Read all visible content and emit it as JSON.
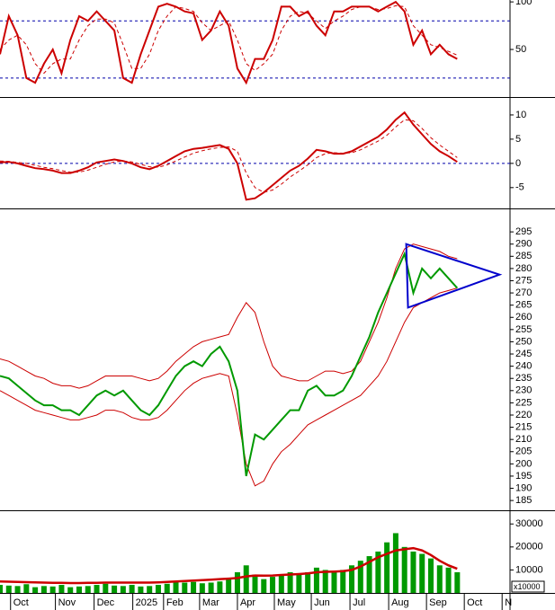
{
  "chart_data": [
    {
      "type": "line",
      "xlim": [
        0,
        58
      ],
      "ylim": [
        0,
        102
      ],
      "yticks": [
        50,
        100
      ],
      "levels": [
        20,
        80
      ],
      "x": [
        0,
        1,
        2,
        3,
        4,
        5,
        6,
        7,
        8,
        9,
        10,
        11,
        12,
        13,
        14,
        15,
        16,
        17,
        18,
        19,
        20,
        21,
        22,
        23,
        24,
        25,
        26,
        27,
        28,
        29,
        30,
        31,
        32,
        33,
        34,
        35,
        36,
        37,
        38,
        39,
        40,
        41,
        42,
        43,
        44,
        45,
        46,
        47,
        48,
        49,
        50,
        51,
        52
      ],
      "series": [
        {
          "color": "#cc0000",
          "style": "line",
          "values": [
            45,
            85,
            65,
            20,
            15,
            35,
            50,
            25,
            60,
            85,
            80,
            90,
            80,
            70,
            20,
            15,
            45,
            70,
            95,
            98,
            95,
            90,
            88,
            60,
            70,
            90,
            75,
            30,
            15,
            40,
            40,
            60,
            95,
            95,
            85,
            90,
            75,
            65,
            90,
            90,
            95,
            95,
            95,
            90,
            95,
            100,
            90,
            55,
            70,
            45,
            55,
            45,
            40
          ]
        },
        {
          "color": "#cc0000",
          "style": "dashed",
          "values": [
            50,
            60,
            65,
            55,
            35,
            25,
            35,
            40,
            40,
            60,
            75,
            82,
            82,
            78,
            55,
            30,
            30,
            45,
            70,
            85,
            95,
            93,
            90,
            78,
            70,
            75,
            80,
            60,
            35,
            28,
            35,
            45,
            70,
            85,
            90,
            88,
            80,
            72,
            80,
            85,
            92,
            95,
            95,
            92,
            93,
            96,
            95,
            75,
            65,
            55,
            52,
            48,
            44
          ]
        }
      ]
    },
    {
      "type": "line",
      "xlim": [
        0,
        58
      ],
      "ylim": [
        -9.3,
        12.4
      ],
      "yticks": [
        -5,
        0,
        5,
        10
      ],
      "levels": [
        0
      ],
      "x": [
        0,
        1,
        2,
        3,
        4,
        5,
        6,
        7,
        8,
        9,
        10,
        11,
        12,
        13,
        14,
        15,
        16,
        17,
        18,
        19,
        20,
        21,
        22,
        23,
        24,
        25,
        26,
        27,
        28,
        29,
        30,
        31,
        32,
        33,
        34,
        35,
        36,
        37,
        38,
        39,
        40,
        41,
        42,
        43,
        44,
        45,
        46,
        47,
        48,
        49,
        50,
        51,
        52
      ],
      "series": [
        {
          "color": "#cc0000",
          "style": "line",
          "values": [
            0.2,
            0.3,
            0,
            -0.5,
            -1,
            -1.2,
            -1.5,
            -2,
            -2,
            -1.5,
            -0.8,
            0.2,
            0.5,
            0.8,
            0.5,
            0,
            -0.8,
            -1.2,
            -0.5,
            0.5,
            1.5,
            2.5,
            3,
            3.2,
            3.5,
            3.8,
            3,
            0,
            -7.5,
            -7.2,
            -6,
            -4.5,
            -3,
            -1.5,
            -0.5,
            1,
            2.8,
            2.5,
            2,
            2,
            2.5,
            3.5,
            4.5,
            5.5,
            7,
            9,
            10.5,
            8,
            6,
            4,
            2.5,
            1.5,
            0.3
          ]
        },
        {
          "color": "#cc0000",
          "style": "dashed",
          "values": [
            0.5,
            0.4,
            0.2,
            0,
            -0.4,
            -0.8,
            -1.1,
            -1.5,
            -1.8,
            -1.8,
            -1.4,
            -0.8,
            -0.2,
            0.3,
            0.5,
            0.3,
            -0.2,
            -0.7,
            -0.8,
            -0.3,
            0.5,
            1.3,
            2.1,
            2.6,
            3,
            3.3,
            3.4,
            2.5,
            -2,
            -5,
            -6,
            -5.5,
            -4.3,
            -2.8,
            -1.6,
            -0.3,
            1.2,
            2,
            2.2,
            2.1,
            2.2,
            2.8,
            3.7,
            4.6,
            5.8,
            7.5,
            9,
            8.8,
            7.2,
            5.3,
            3.8,
            2.5,
            1.2
          ]
        }
      ]
    },
    {
      "type": "line",
      "xlim": [
        0,
        58
      ],
      "ylim": [
        181,
        302.4
      ],
      "yticks": [
        185,
        190,
        195,
        200,
        205,
        210,
        215,
        220,
        225,
        230,
        235,
        240,
        245,
        250,
        255,
        260,
        265,
        270,
        275,
        280,
        285,
        290,
        295
      ],
      "x": [
        0,
        1,
        2,
        3,
        4,
        5,
        6,
        7,
        8,
        9,
        10,
        11,
        12,
        13,
        14,
        15,
        16,
        17,
        18,
        19,
        20,
        21,
        22,
        23,
        24,
        25,
        26,
        27,
        28,
        29,
        30,
        31,
        32,
        33,
        34,
        35,
        36,
        37,
        38,
        39,
        40,
        41,
        42,
        43,
        44,
        45,
        46,
        47,
        48,
        49,
        50,
        51,
        52
      ],
      "series": [
        {
          "color": "#cc0000",
          "style": "thin",
          "values": [
            243,
            242,
            240,
            238,
            236,
            235,
            233,
            232,
            232,
            231,
            232,
            234,
            236,
            236,
            236,
            236,
            235,
            234,
            235,
            238,
            242,
            245,
            248,
            250,
            251,
            252,
            253,
            260,
            266,
            262,
            250,
            240,
            236,
            235,
            234,
            234,
            236,
            238,
            238,
            237,
            238,
            242,
            250,
            258,
            268,
            280,
            288,
            290,
            289,
            288,
            287,
            285,
            284
          ]
        },
        {
          "color": "#cc0000",
          "style": "thin",
          "values": [
            230,
            228,
            226,
            224,
            222,
            221,
            220,
            219,
            218,
            218,
            219,
            220,
            222,
            222,
            221,
            219,
            218,
            218,
            219,
            222,
            226,
            230,
            233,
            235,
            236,
            237,
            236,
            220,
            200,
            191,
            193,
            200,
            205,
            208,
            212,
            216,
            218,
            220,
            222,
            224,
            226,
            228,
            232,
            236,
            242,
            250,
            258,
            264,
            266,
            268,
            270,
            271,
            272
          ]
        },
        {
          "color": "#009900",
          "style": "line",
          "values": [
            236,
            235,
            232,
            229,
            226,
            224,
            224,
            222,
            222,
            220,
            224,
            228,
            230,
            228,
            230,
            226,
            222,
            220,
            224,
            230,
            236,
            240,
            242,
            240,
            245,
            248,
            242,
            230,
            195,
            212,
            210,
            214,
            218,
            222,
            222,
            230,
            232,
            228,
            228,
            230,
            236,
            244,
            252,
            262,
            270,
            278,
            286,
            270,
            280,
            276,
            280,
            276,
            272
          ]
        }
      ],
      "shape": {
        "color": "#0000cc",
        "x": [
          46.2,
          56.8,
          46.4
        ],
        "y": [
          290,
          277.5,
          264
        ]
      }
    },
    {
      "type": "bar",
      "xlim": [
        0,
        58
      ],
      "ylim": [
        0,
        34000
      ],
      "yticks": [
        10000,
        20000,
        30000
      ],
      "unit_label": "x10000",
      "x": [
        0,
        1,
        2,
        3,
        4,
        5,
        6,
        7,
        8,
        9,
        10,
        11,
        12,
        13,
        14,
        15,
        16,
        17,
        18,
        19,
        20,
        21,
        22,
        23,
        24,
        25,
        26,
        27,
        28,
        29,
        30,
        31,
        32,
        33,
        34,
        35,
        36,
        37,
        38,
        39,
        40,
        41,
        42,
        43,
        44,
        45,
        46,
        47,
        48,
        49,
        50,
        51,
        52
      ],
      "series": [
        {
          "color": "#009900",
          "style": "bar",
          "values": [
            3500,
            3200,
            3000,
            3800,
            2500,
            3000,
            2800,
            3500,
            2500,
            2800,
            3000,
            3500,
            4000,
            3200,
            3000,
            3500,
            2800,
            3000,
            3500,
            4000,
            5000,
            4500,
            4800,
            4200,
            4500,
            5000,
            6000,
            9000,
            12000,
            8000,
            6000,
            7000,
            8000,
            9000,
            8000,
            9000,
            11000,
            10000,
            9000,
            10000,
            12000,
            14000,
            16000,
            18000,
            22000,
            26000,
            20000,
            18000,
            17000,
            15000,
            12000,
            11000,
            9000
          ]
        },
        {
          "color": "#cc0000",
          "style": "thick",
          "values": [
            5000,
            4900,
            4800,
            4700,
            4600,
            4500,
            4400,
            4400,
            4300,
            4300,
            4400,
            4400,
            4500,
            4500,
            4500,
            4500,
            4500,
            4500,
            4600,
            4800,
            5000,
            5200,
            5400,
            5600,
            5800,
            6000,
            6200,
            6500,
            7200,
            7600,
            7500,
            7600,
            7800,
            8000,
            8200,
            8500,
            9000,
            9200,
            9300,
            9500,
            10000,
            11500,
            13500,
            15500,
            17000,
            18500,
            19000,
            19500,
            18500,
            16500,
            14000,
            12000,
            10500
          ]
        }
      ],
      "xticks": [
        {
          "value": 1.2,
          "label": "Oct"
        },
        {
          "value": 6.3,
          "label": "Nov"
        },
        {
          "value": 10.7,
          "label": "Dec"
        },
        {
          "value": 15.1,
          "label": "2025"
        },
        {
          "value": 18.6,
          "label": "Feb"
        },
        {
          "value": 22.7,
          "label": "Mar"
        },
        {
          "value": 27,
          "label": "Apr"
        },
        {
          "value": 31.2,
          "label": "May"
        },
        {
          "value": 35.4,
          "label": "Jun"
        },
        {
          "value": 39.8,
          "label": "Jul"
        },
        {
          "value": 44.2,
          "label": "Aug"
        },
        {
          "value": 48.5,
          "label": "Sep"
        },
        {
          "value": 52.8,
          "label": "Oct"
        },
        {
          "value": 57.1,
          "label": "N"
        }
      ]
    }
  ]
}
